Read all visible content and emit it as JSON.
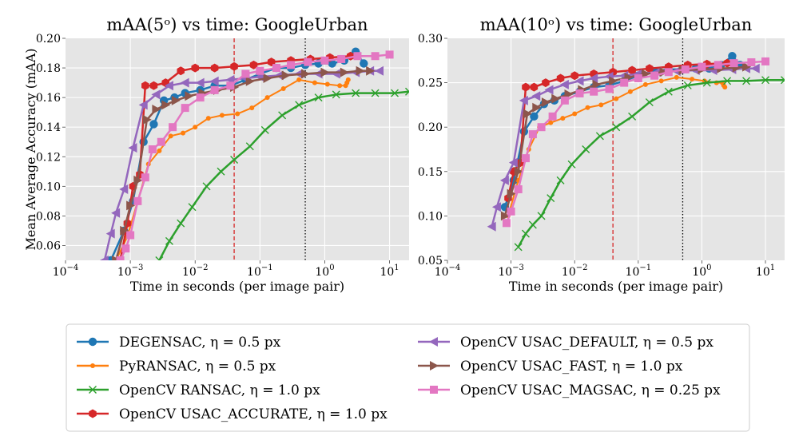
{
  "chart_data": [
    {
      "type": "line",
      "title": "mAA(5ᵒ) vs time: GoogleUrban",
      "xlabel": "Time in seconds (per image pair)",
      "ylabel": "Mean Average Accuracy (mAA)",
      "xscale": "log",
      "xlim": [
        0.0001,
        20
      ],
      "ylim": [
        0.05,
        0.2
      ],
      "yticks": [
        "0.06",
        "0.08",
        "0.10",
        "0.12",
        "0.14",
        "0.16",
        "0.18",
        "0.20"
      ],
      "yticks_values": [
        0.06,
        0.08,
        0.1,
        0.12,
        0.14,
        0.16,
        0.18,
        0.2
      ],
      "xticks_values": [
        0.0001,
        0.001,
        0.01,
        0.1,
        1,
        10
      ],
      "xticks": [
        {
          "base": "10",
          "exp": "−4"
        },
        {
          "base": "10",
          "exp": "−3"
        },
        {
          "base": "10",
          "exp": "−2"
        },
        {
          "base": "10",
          "exp": "−1"
        },
        {
          "base": "10",
          "exp": "0"
        },
        {
          "base": "10",
          "exp": "1"
        }
      ],
      "grid": true,
      "vlines": [
        {
          "x": 0.04,
          "color": "#d62728",
          "style": "dashed"
        },
        {
          "x": 0.5,
          "color": "#000000",
          "style": "dotted"
        }
      ],
      "series": [
        {
          "id": "degensac",
          "x": [
            0.0005,
            0.0008,
            0.0011,
            0.0016,
            0.0023,
            0.0033,
            0.0048,
            0.007,
            0.012,
            0.02,
            0.035,
            0.06,
            0.1,
            0.18,
            0.3,
            0.5,
            0.8,
            1.3,
            2.0,
            3.0,
            4.0
          ],
          "y": [
            0.05,
            0.07,
            0.09,
            0.13,
            0.142,
            0.158,
            0.16,
            0.163,
            0.165,
            0.168,
            0.168,
            0.172,
            0.176,
            0.18,
            0.18,
            0.182,
            0.183,
            0.183,
            0.185,
            0.191,
            0.183
          ]
        },
        {
          "id": "pyransac",
          "x": [
            0.0006,
            0.0009,
            0.0013,
            0.0019,
            0.0028,
            0.0042,
            0.0065,
            0.01,
            0.016,
            0.026,
            0.045,
            0.075,
            0.13,
            0.23,
            0.4,
            0.7,
            1.1,
            1.7,
            2.1,
            2.2,
            2.3
          ],
          "y": [
            0.05,
            0.066,
            0.09,
            0.115,
            0.124,
            0.134,
            0.136,
            0.14,
            0.146,
            0.148,
            0.149,
            0.153,
            0.16,
            0.166,
            0.172,
            0.17,
            0.169,
            0.168,
            0.168,
            0.17,
            0.172
          ]
        },
        {
          "id": "opencv_ransac",
          "x": [
            0.0028,
            0.004,
            0.006,
            0.009,
            0.015,
            0.025,
            0.04,
            0.07,
            0.12,
            0.22,
            0.4,
            0.8,
            1.5,
            3,
            6,
            12,
            20
          ],
          "y": [
            0.05,
            0.063,
            0.075,
            0.086,
            0.1,
            0.11,
            0.118,
            0.127,
            0.138,
            0.148,
            0.155,
            0.16,
            0.162,
            0.163,
            0.163,
            0.163,
            0.164
          ]
        },
        {
          "id": "usac_accurate",
          "x": [
            0.0007,
            0.0009,
            0.0011,
            0.0014,
            0.0017,
            0.0023,
            0.0035,
            0.006,
            0.01,
            0.02,
            0.04,
            0.08,
            0.15,
            0.3,
            0.6,
            1.2,
            2.5
          ],
          "y": [
            0.05,
            0.075,
            0.1,
            0.108,
            0.168,
            0.168,
            0.17,
            0.178,
            0.18,
            0.18,
            0.181,
            0.182,
            0.184,
            0.185,
            0.186,
            0.187,
            0.188
          ]
        },
        {
          "id": "usac_default",
          "x": [
            0.0004,
            0.0005,
            0.0006,
            0.0008,
            0.0011,
            0.0016,
            0.0025,
            0.004,
            0.007,
            0.012,
            0.02,
            0.035,
            0.06,
            0.1,
            0.2,
            0.4,
            0.8,
            1.5,
            3,
            5,
            7
          ],
          "y": [
            0.05,
            0.068,
            0.082,
            0.098,
            0.126,
            0.155,
            0.162,
            0.168,
            0.17,
            0.17,
            0.171,
            0.172,
            0.173,
            0.174,
            0.175,
            0.176,
            0.176,
            0.176,
            0.177,
            0.178,
            0.178
          ]
        },
        {
          "id": "usac_fast",
          "x": [
            0.0006,
            0.0008,
            0.001,
            0.0013,
            0.0018,
            0.0025,
            0.0035,
            0.005,
            0.008,
            0.013,
            0.022,
            0.04,
            0.07,
            0.13,
            0.25,
            0.5,
            1.0,
            2.0,
            3.5,
            5
          ],
          "y": [
            0.05,
            0.07,
            0.087,
            0.104,
            0.145,
            0.152,
            0.155,
            0.158,
            0.161,
            0.163,
            0.165,
            0.167,
            0.171,
            0.173,
            0.175,
            0.176,
            0.177,
            0.177,
            0.178,
            0.178
          ]
        },
        {
          "id": "usac_magsac",
          "x": [
            0.0007,
            0.00085,
            0.001,
            0.0013,
            0.0017,
            0.0022,
            0.003,
            0.0045,
            0.007,
            0.012,
            0.02,
            0.035,
            0.06,
            0.1,
            0.18,
            0.3,
            0.55,
            1.0,
            1.8,
            3.2,
            6,
            10
          ],
          "y": [
            0.05,
            0.058,
            0.067,
            0.09,
            0.106,
            0.125,
            0.13,
            0.14,
            0.153,
            0.16,
            0.165,
            0.168,
            0.176,
            0.178,
            0.18,
            0.182,
            0.184,
            0.185,
            0.186,
            0.188,
            0.188,
            0.189
          ]
        }
      ]
    },
    {
      "type": "line",
      "title": "mAA(10ᵒ) vs time: GoogleUrban",
      "xlabel": "Time in seconds (per image pair)",
      "ylabel": "",
      "xscale": "log",
      "xlim": [
        0.0001,
        20
      ],
      "ylim": [
        0.05,
        0.3
      ],
      "yticks": [
        "0.05",
        "0.10",
        "0.15",
        "0.20",
        "0.25",
        "0.30"
      ],
      "yticks_values": [
        0.05,
        0.1,
        0.15,
        0.2,
        0.25,
        0.3
      ],
      "xticks_values": [
        0.0001,
        0.001,
        0.01,
        0.1,
        1,
        10
      ],
      "xticks": [
        {
          "base": "10",
          "exp": "−4"
        },
        {
          "base": "10",
          "exp": "−3"
        },
        {
          "base": "10",
          "exp": "−2"
        },
        {
          "base": "10",
          "exp": "−1"
        },
        {
          "base": "10",
          "exp": "0"
        },
        {
          "base": "10",
          "exp": "1"
        }
      ],
      "grid": true,
      "vlines": [
        {
          "x": 0.04,
          "color": "#d62728",
          "style": "dashed"
        },
        {
          "x": 0.5,
          "color": "#000000",
          "style": "dotted"
        }
      ],
      "series": [
        {
          "id": "degensac",
          "x": [
            0.0008,
            0.0011,
            0.0016,
            0.0023,
            0.0033,
            0.0048,
            0.007,
            0.012,
            0.02,
            0.035,
            0.06,
            0.1,
            0.18,
            0.3,
            0.5,
            0.8,
            1.3,
            2.0,
            3.0,
            4.0
          ],
          "y": [
            0.11,
            0.14,
            0.195,
            0.212,
            0.226,
            0.23,
            0.235,
            0.24,
            0.245,
            0.247,
            0.252,
            0.258,
            0.263,
            0.265,
            0.265,
            0.266,
            0.266,
            0.27,
            0.28,
            0.27
          ]
        },
        {
          "id": "pyransac",
          "x": [
            0.0009,
            0.0013,
            0.0019,
            0.0028,
            0.0042,
            0.0065,
            0.01,
            0.016,
            0.026,
            0.045,
            0.075,
            0.13,
            0.23,
            0.4,
            0.7,
            1.1,
            1.7,
            2.1,
            2.2,
            2.3
          ],
          "y": [
            0.1,
            0.14,
            0.175,
            0.2,
            0.205,
            0.21,
            0.215,
            0.222,
            0.225,
            0.232,
            0.24,
            0.248,
            0.252,
            0.256,
            0.254,
            0.252,
            0.25,
            0.25,
            0.247,
            0.245
          ]
        },
        {
          "id": "opencv_ransac",
          "x": [
            0.0013,
            0.0017,
            0.0022,
            0.003,
            0.0042,
            0.006,
            0.009,
            0.015,
            0.025,
            0.045,
            0.08,
            0.15,
            0.3,
            0.6,
            1.2,
            2.5,
            5,
            10,
            20
          ],
          "y": [
            0.065,
            0.08,
            0.09,
            0.1,
            0.12,
            0.14,
            0.158,
            0.175,
            0.19,
            0.2,
            0.212,
            0.228,
            0.24,
            0.247,
            0.25,
            0.252,
            0.252,
            0.253,
            0.253
          ]
        },
        {
          "id": "usac_accurate",
          "x": [
            0.0009,
            0.0011,
            0.0014,
            0.0017,
            0.0023,
            0.0035,
            0.006,
            0.01,
            0.02,
            0.04,
            0.08,
            0.15,
            0.3,
            0.6,
            1.2,
            2.5
          ],
          "y": [
            0.12,
            0.15,
            0.16,
            0.245,
            0.245,
            0.25,
            0.255,
            0.258,
            0.26,
            0.262,
            0.264,
            0.266,
            0.268,
            0.27,
            0.271,
            0.272
          ]
        },
        {
          "id": "usac_default",
          "x": [
            0.0005,
            0.0006,
            0.0008,
            0.0011,
            0.0016,
            0.0025,
            0.004,
            0.007,
            0.012,
            0.02,
            0.035,
            0.06,
            0.1,
            0.2,
            0.4,
            0.8,
            1.5,
            3,
            5,
            7
          ],
          "y": [
            0.088,
            0.11,
            0.14,
            0.16,
            0.23,
            0.235,
            0.242,
            0.248,
            0.252,
            0.255,
            0.257,
            0.258,
            0.26,
            0.262,
            0.263,
            0.264,
            0.264,
            0.265,
            0.266,
            0.266
          ]
        },
        {
          "id": "usac_fast",
          "x": [
            0.0008,
            0.001,
            0.0013,
            0.0018,
            0.0025,
            0.0035,
            0.005,
            0.008,
            0.013,
            0.022,
            0.04,
            0.07,
            0.13,
            0.25,
            0.5,
            1.0,
            2.0,
            3.5,
            5
          ],
          "y": [
            0.1,
            0.125,
            0.15,
            0.215,
            0.222,
            0.228,
            0.232,
            0.237,
            0.242,
            0.248,
            0.252,
            0.256,
            0.26,
            0.262,
            0.264,
            0.265,
            0.266,
            0.267,
            0.268
          ]
        },
        {
          "id": "usac_magsac",
          "x": [
            0.00085,
            0.001,
            0.0013,
            0.0017,
            0.0022,
            0.003,
            0.0045,
            0.007,
            0.012,
            0.02,
            0.035,
            0.06,
            0.1,
            0.18,
            0.3,
            0.55,
            1.0,
            1.8,
            3.2,
            6,
            10
          ],
          "y": [
            0.092,
            0.105,
            0.13,
            0.165,
            0.192,
            0.2,
            0.212,
            0.23,
            0.238,
            0.24,
            0.243,
            0.25,
            0.255,
            0.258,
            0.262,
            0.265,
            0.268,
            0.27,
            0.272,
            0.273,
            0.274
          ]
        }
      ]
    }
  ],
  "legend": {
    "placement": "bottom",
    "items": [
      {
        "id": "degensac",
        "label": "DEGENSAC, η = 0.5 px",
        "color": "#1f77b4",
        "marker": "circle"
      },
      {
        "id": "pyransac",
        "label": "PyRANSAC, η = 0.5 px",
        "color": "#ff7f0e",
        "marker": "point"
      },
      {
        "id": "opencv_ransac",
        "label": "OpenCV RANSAC, η = 1.0 px",
        "color": "#2ca02c",
        "marker": "x"
      },
      {
        "id": "usac_accurate",
        "label": "OpenCV USAC_ACCURATE, η = 1.0 px",
        "color": "#d62728",
        "marker": "hexagon"
      },
      {
        "id": "usac_default",
        "label": "OpenCV USAC_DEFAULT, η = 0.5 px",
        "color": "#9467bd",
        "marker": "triangle-left"
      },
      {
        "id": "usac_fast",
        "label": "OpenCV USAC_FAST, η = 1.0 px",
        "color": "#8c564b",
        "marker": "triangle-right"
      },
      {
        "id": "usac_magsac",
        "label": "OpenCV USAC_MAGSAC, η = 0.25 px",
        "color": "#e377c2",
        "marker": "square"
      }
    ]
  }
}
